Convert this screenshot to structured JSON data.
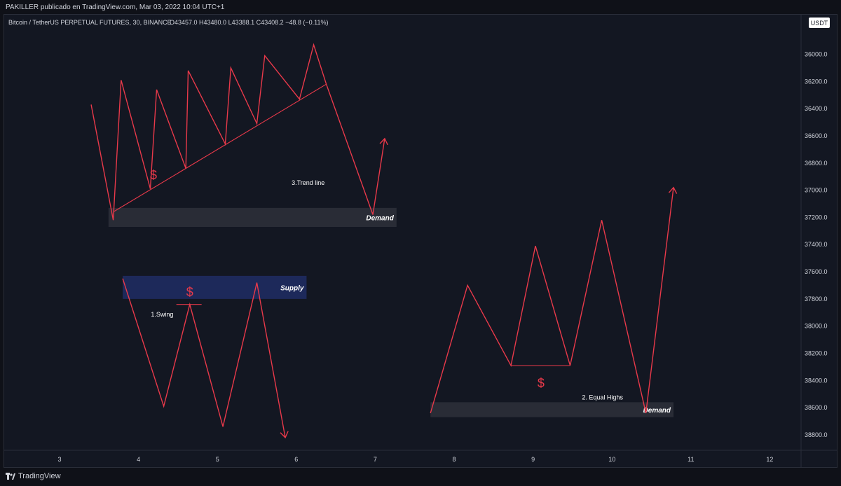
{
  "header": {
    "publisher": "PAKILLER publicado en TradingView.com, Mar 03, 2022 10:04 UTC+1"
  },
  "symbol": {
    "title": "Bitcoin / TetherUS PERPETUAL FUTURES, 30, BINANCE",
    "ohlc": "O43457.0  H43480.0  L43388.1  C43408.2  −48.8 (−0.11%)",
    "currency": "USDT"
  },
  "footer": {
    "brand": "TradingView"
  },
  "colors": {
    "background": "#131722",
    "line": "#e8394a",
    "supply": "#1e2a5e",
    "demand": "#2a2d38",
    "text": "#d1d4dc"
  },
  "chart_data": {
    "type": "line",
    "price_axis": {
      "inverted": true,
      "ticks": [
        36000,
        36200,
        36400,
        36600,
        36800,
        37000,
        37200,
        37400,
        37600,
        37800,
        38000,
        38200,
        38400,
        38600,
        38800
      ],
      "tick_labels": [
        "36000.0",
        "36200.0",
        "36400.0",
        "36600.0",
        "36800.0",
        "37000.0",
        "37200.0",
        "37400.0",
        "37600.0",
        "37800.0",
        "38000.0",
        "38200.0",
        "38400.0",
        "38600.0",
        "38800.0"
      ]
    },
    "time_axis": {
      "ticks": [
        3,
        4,
        5,
        6,
        7,
        8,
        9,
        10,
        11,
        12
      ],
      "tick_labels": [
        "3",
        "4",
        "5",
        "6",
        "7",
        "8",
        "9",
        "10",
        "11",
        "12"
      ]
    },
    "drawings": [
      {
        "name": "trendline-pattern",
        "points": [
          [
            3.4,
            36370
          ],
          [
            3.68,
            37220
          ],
          [
            3.78,
            36190
          ],
          [
            4.15,
            36990
          ],
          [
            4.23,
            36260
          ],
          [
            4.6,
            36840
          ],
          [
            4.63,
            36120
          ],
          [
            5.1,
            36660
          ],
          [
            5.17,
            36100
          ],
          [
            5.5,
            36510
          ],
          [
            5.6,
            36010
          ],
          [
            6.04,
            36330
          ],
          [
            6.22,
            35930
          ],
          [
            6.38,
            36220
          ],
          [
            6.97,
            37180
          ],
          [
            7.12,
            36620
          ]
        ],
        "arrow": true
      },
      {
        "name": "swing-pattern",
        "points": [
          [
            3.8,
            37650
          ],
          [
            4.32,
            38590
          ],
          [
            4.65,
            37840
          ],
          [
            5.07,
            38740
          ],
          [
            5.5,
            37680
          ],
          [
            5.86,
            38820
          ]
        ],
        "arrow": true
      },
      {
        "name": "equal-highs-pattern",
        "points": [
          [
            7.7,
            38640
          ],
          [
            8.17,
            37700
          ],
          [
            8.72,
            38290
          ],
          [
            9.03,
            37410
          ],
          [
            9.47,
            38290
          ],
          [
            9.87,
            37220
          ],
          [
            10.43,
            38640
          ],
          [
            10.78,
            36980
          ]
        ],
        "arrow": true
      }
    ],
    "lines": [
      {
        "name": "trend-line",
        "from": [
          3.68,
          37160
        ],
        "to": [
          6.38,
          36220
        ]
      },
      {
        "name": "equal-highs-line",
        "from": [
          8.72,
          38290
        ],
        "to": [
          9.47,
          38290
        ]
      },
      {
        "name": "swing-level-line",
        "from": [
          4.48,
          37840
        ],
        "to": [
          4.8,
          37840
        ]
      }
    ],
    "zones": [
      {
        "name": "demand-zone-1",
        "label": "Demand",
        "x": [
          3.62,
          7.27
        ],
        "y": [
          37130,
          37270
        ],
        "kind": "demand"
      },
      {
        "name": "supply-zone",
        "label": "Supply",
        "x": [
          3.8,
          6.13
        ],
        "y": [
          37630,
          37800
        ],
        "kind": "supply"
      },
      {
        "name": "demand-zone-2",
        "label": "Demand",
        "x": [
          7.7,
          10.78
        ],
        "y": [
          38560,
          38670
        ],
        "kind": "demand"
      }
    ],
    "annotations": [
      {
        "name": "label-trend-line",
        "text": "3.Trend line",
        "x": 6.15,
        "y": 36960,
        "color": "#ffffff",
        "size": 9
      },
      {
        "name": "label-swing",
        "text": "1.Swing",
        "x": 4.3,
        "y": 37930,
        "color": "#ffffff",
        "size": 9
      },
      {
        "name": "label-equal-highs",
        "text": "2. Equal Highs",
        "x": 9.88,
        "y": 38540,
        "color": "#ffffff",
        "size": 9
      },
      {
        "name": "dollar-trend",
        "text": "$",
        "x": 4.19,
        "y": 36920,
        "color": "#e8394a",
        "size": 18
      },
      {
        "name": "dollar-swing",
        "text": "$",
        "x": 4.65,
        "y": 37780,
        "color": "#e8394a",
        "size": 18
      },
      {
        "name": "dollar-equal-highs",
        "text": "$",
        "x": 9.1,
        "y": 38450,
        "color": "#e8394a",
        "size": 18
      }
    ]
  }
}
